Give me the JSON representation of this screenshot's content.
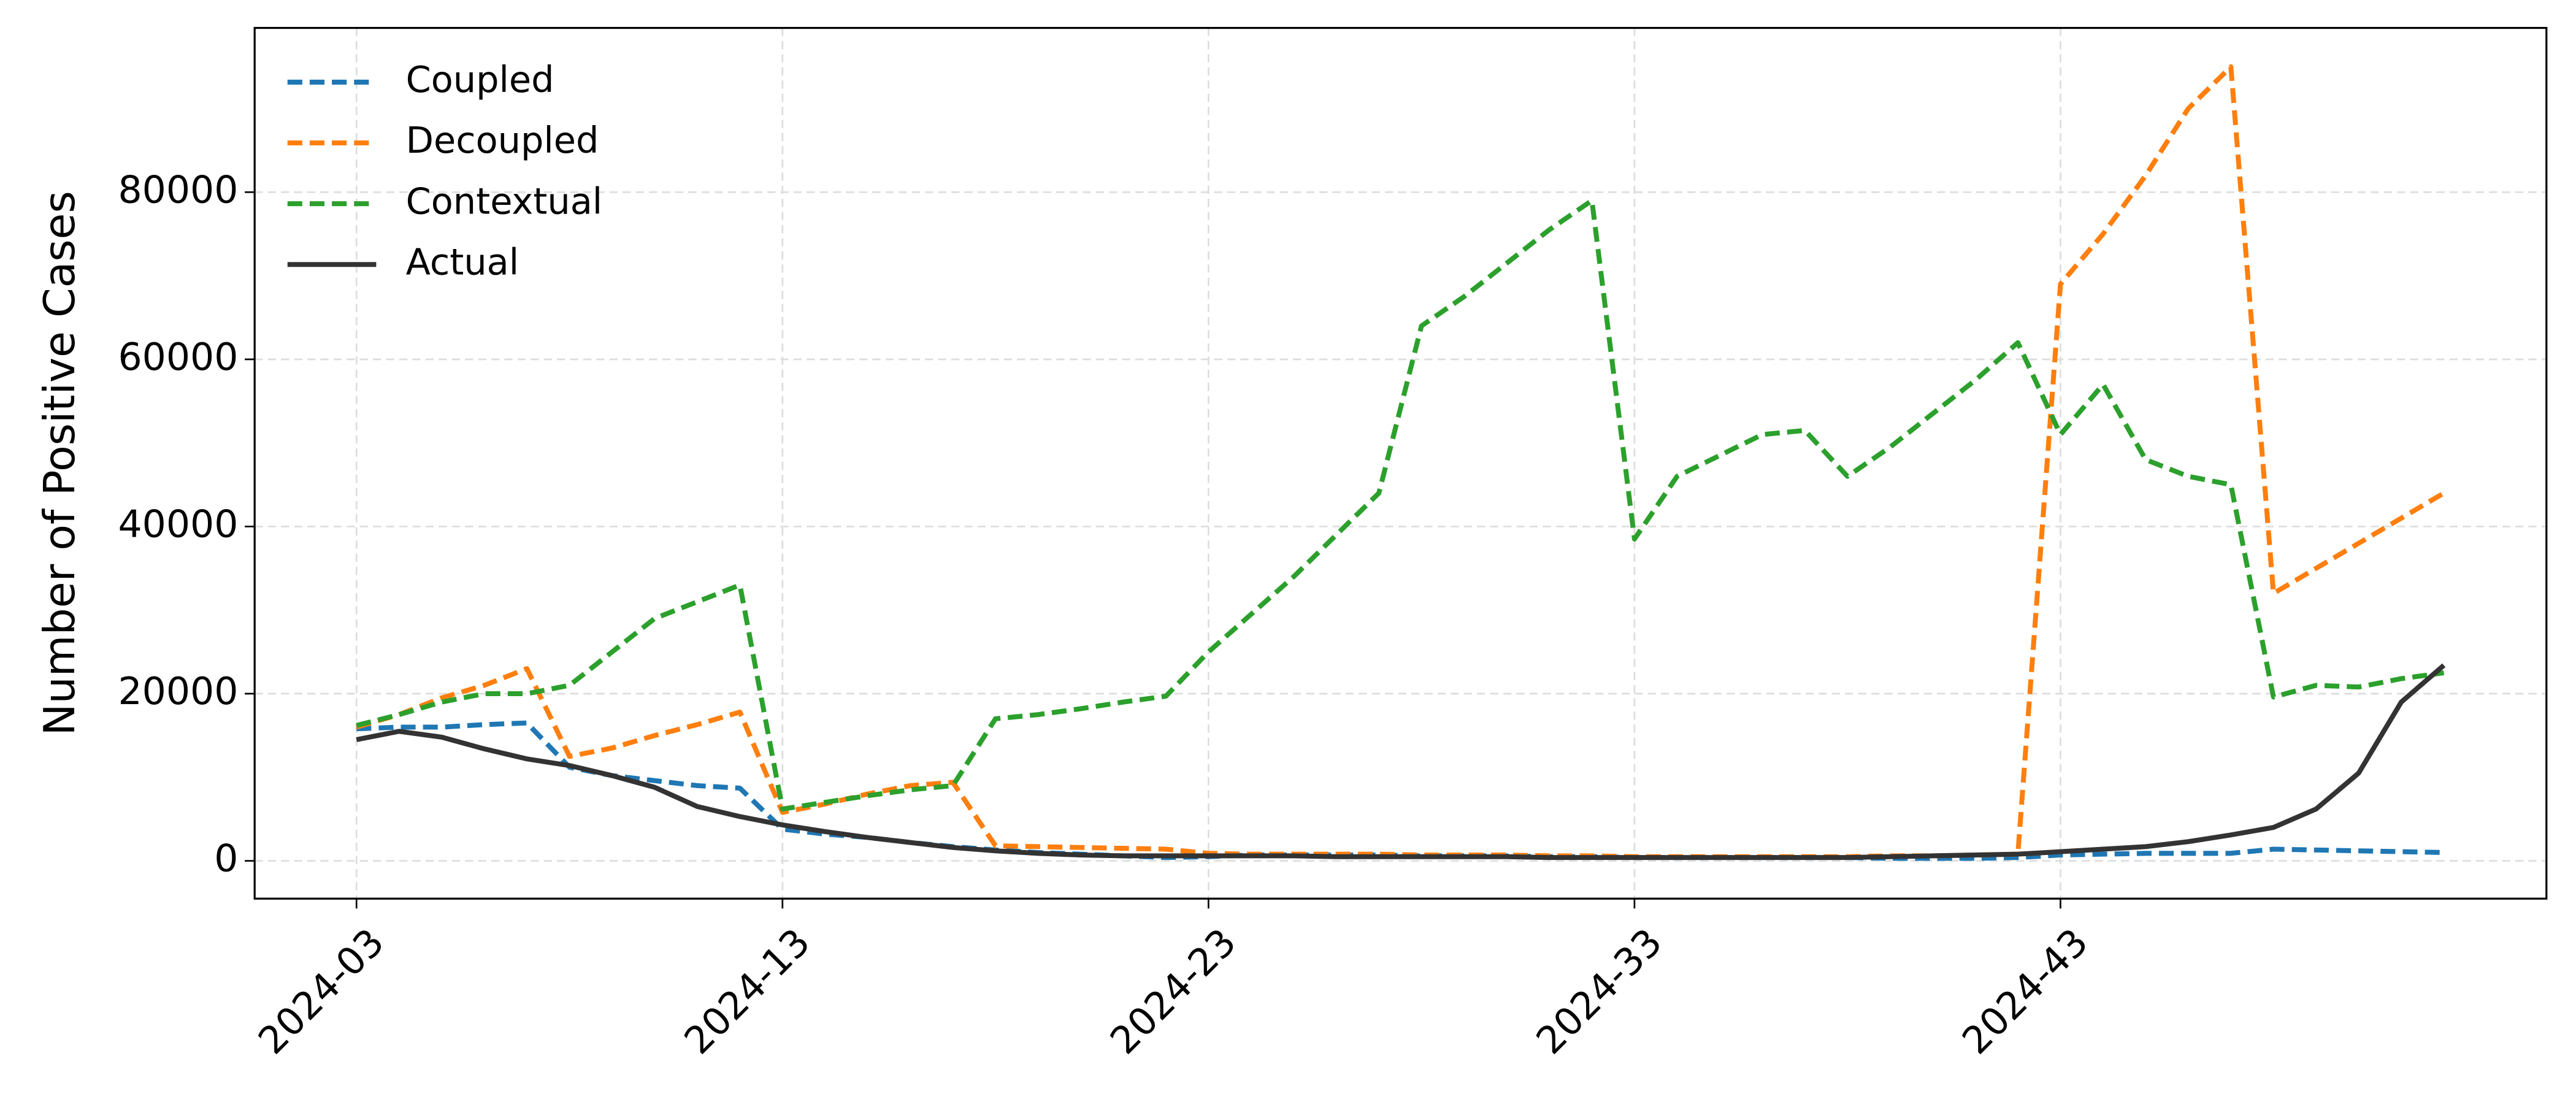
{
  "chart_data": {
    "type": "line",
    "ylabel": "Number of Positive Cases",
    "categories": [
      "2024-03",
      null,
      null,
      null,
      null,
      null,
      null,
      null,
      null,
      null,
      "2024-13",
      null,
      null,
      null,
      null,
      null,
      null,
      null,
      null,
      null,
      "2024-23",
      null,
      null,
      null,
      null,
      null,
      null,
      null,
      null,
      null,
      "2024-33",
      null,
      null,
      null,
      null,
      null,
      null,
      null,
      null,
      null,
      "2024-43",
      null,
      null,
      null,
      null,
      null,
      null,
      null,
      null,
      null
    ],
    "series": [
      {
        "name": "Coupled",
        "color": "#1f77b4",
        "linestyle": "dashed",
        "values": [
          15800,
          16000,
          16000,
          16300,
          16500,
          11200,
          10200,
          9600,
          9000,
          8700,
          3800,
          3200,
          2800,
          2200,
          1700,
          1300,
          1000,
          800,
          600,
          400,
          500,
          700,
          700,
          700,
          700,
          600,
          600,
          600,
          500,
          500,
          400,
          400,
          400,
          400,
          400,
          400,
          300,
          300,
          300,
          400,
          700,
          800,
          900,
          900,
          900,
          1400,
          1300,
          1200,
          1100,
          1000
        ]
      },
      {
        "name": "Decoupled",
        "color": "#ff7f0e",
        "linestyle": "dashed",
        "values": [
          16000,
          17500,
          19500,
          21000,
          23000,
          12500,
          13500,
          15000,
          16300,
          17800,
          5800,
          6800,
          8000,
          9000,
          9400,
          1800,
          1700,
          1600,
          1500,
          1400,
          900,
          800,
          800,
          800,
          800,
          700,
          700,
          700,
          600,
          600,
          500,
          500,
          500,
          500,
          500,
          500,
          600,
          600,
          700,
          800,
          69000,
          75000,
          82000,
          90000,
          95000,
          32000,
          35000,
          38000,
          41000,
          44000
        ]
      },
      {
        "name": "Contextual",
        "color": "#2ca02c",
        "linestyle": "dashed",
        "values": [
          16200,
          17500,
          19000,
          20000,
          20000,
          21000,
          25000,
          29000,
          31000,
          33000,
          6200,
          7000,
          7800,
          8500,
          9000,
          17000,
          17500,
          18200,
          19000,
          19700,
          25000,
          29500,
          34000,
          39000,
          44000,
          64000,
          67500,
          71500,
          75500,
          79000,
          38500,
          46000,
          48500,
          51000,
          51500,
          46000,
          49500,
          53500,
          57500,
          62000,
          51000,
          57000,
          48000,
          46000,
          45000,
          19600,
          21000,
          20800,
          21800,
          22500
        ]
      },
      {
        "name": "Actual",
        "color": "#333333",
        "linestyle": "solid",
        "values": [
          14500,
          15500,
          14800,
          13400,
          12200,
          11400,
          10200,
          8800,
          6500,
          5300,
          4300,
          3500,
          2800,
          2200,
          1600,
          1200,
          900,
          700,
          600,
          600,
          600,
          600,
          600,
          500,
          500,
          500,
          500,
          500,
          400,
          400,
          400,
          400,
          400,
          400,
          400,
          400,
          500,
          600,
          700,
          800,
          1100,
          1400,
          1700,
          2300,
          3100,
          4000,
          6200,
          10500,
          19000,
          23400
        ]
      }
    ],
    "ylim": [
      -4520,
      99650
    ],
    "yticks": [
      0,
      20000,
      40000,
      60000,
      80000
    ],
    "grid": true,
    "legend": "upper left"
  }
}
